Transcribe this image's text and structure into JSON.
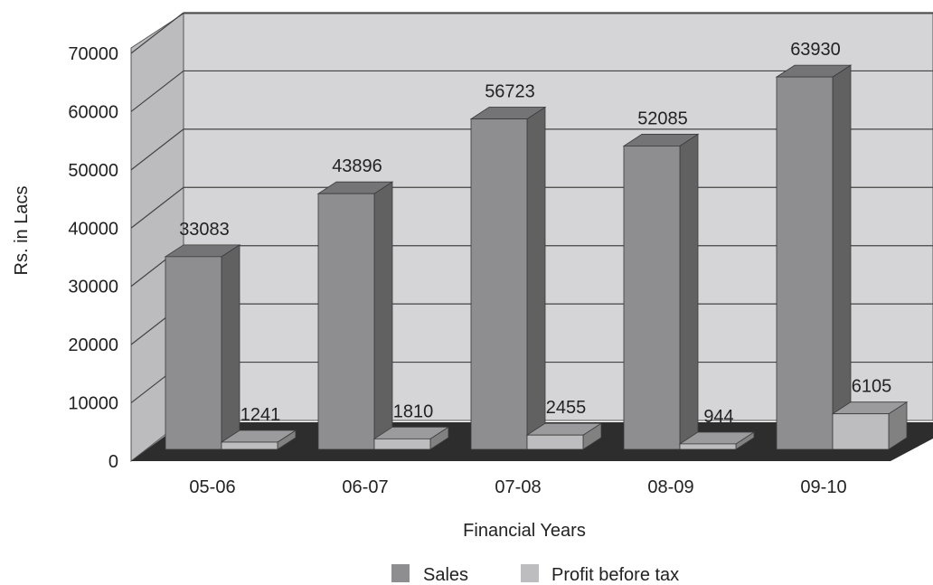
{
  "chart_data": {
    "type": "bar",
    "style": "3d-clustered",
    "categories": [
      "05-06",
      "06-07",
      "07-08",
      "08-09",
      "09-10"
    ],
    "series": [
      {
        "name": "Sales",
        "values": [
          33083,
          43896,
          56723,
          52085,
          63930
        ],
        "color": "#8e8e90"
      },
      {
        "name": "Profit before tax",
        "values": [
          1241,
          1810,
          2455,
          944,
          6105
        ],
        "color": "#bdbdbf"
      }
    ],
    "xlabel": "Financial Years",
    "ylabel": "Rs. in Lacs",
    "ylim": [
      0,
      70000
    ],
    "yticks": [
      0,
      10000,
      20000,
      30000,
      40000,
      50000,
      60000,
      70000
    ],
    "grid": true,
    "legend_position": "bottom",
    "data_labels": true,
    "colors": {
      "back_wall": "#d5d5d7",
      "side_wall": "#bcbcbe",
      "floor": "#2d2d2d",
      "gridline": "#444444"
    }
  }
}
